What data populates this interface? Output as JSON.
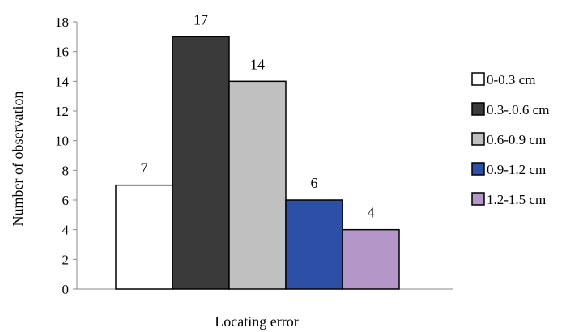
{
  "chart_data": {
    "type": "bar",
    "xlabel": "Locating error",
    "ylabel": "Number of observation",
    "ylim": [
      0,
      18
    ],
    "yticks": [
      0,
      2,
      4,
      6,
      8,
      10,
      12,
      14,
      16,
      18
    ],
    "grid": false,
    "legend_position": "right",
    "series": [
      {
        "name": "0-0.3 cm",
        "values": [
          7
        ],
        "color": "#ffffff"
      },
      {
        "name": "0.3-.0.6 cm",
        "values": [
          17
        ],
        "color": "#3a3a3a"
      },
      {
        "name": "0.6-0.9 cm",
        "values": [
          14
        ],
        "color": "#c0c0c0"
      },
      {
        "name": "0.9-1.2 cm",
        "values": [
          6
        ],
        "color": "#2d4fa6"
      },
      {
        "name": "1.2-1.5 cm",
        "values": [
          4
        ],
        "color": "#b496c8"
      }
    ]
  }
}
